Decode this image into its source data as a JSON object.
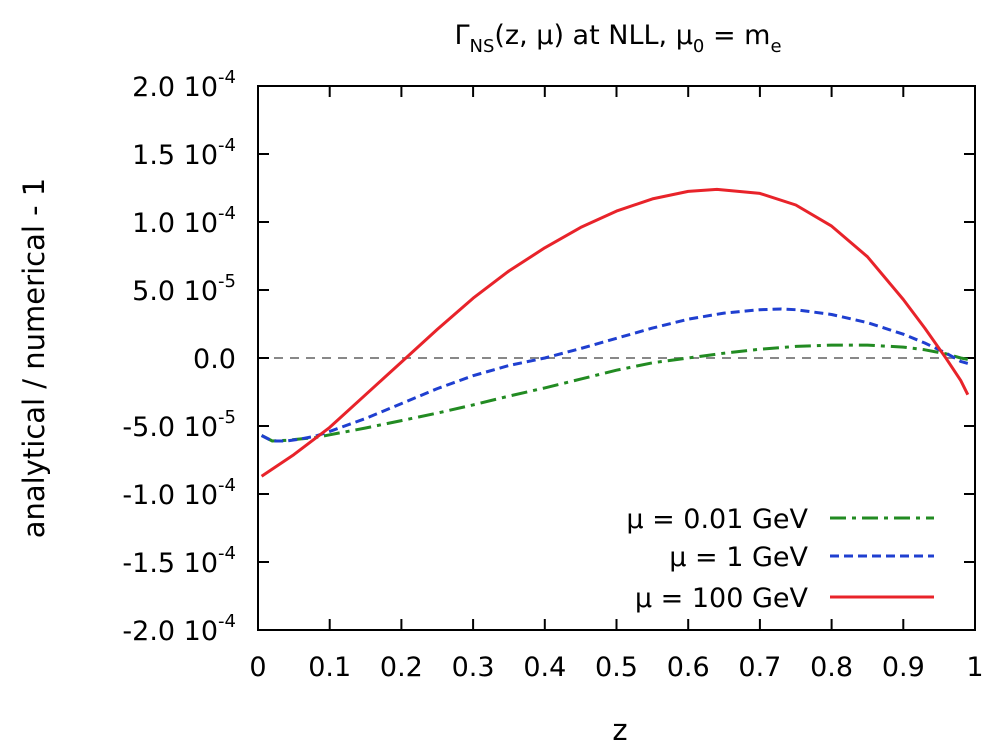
{
  "chart_data": {
    "type": "line",
    "title": {
      "prefix": "Γ",
      "prefix_sub": "NS",
      "middle": "(z, μ) at NLL, μ",
      "middle_sub": "0",
      "suffix": " = m",
      "suffix_sub": "e"
    },
    "xlabel": "z",
    "ylabel": "analytical / numerical - 1",
    "xlim": [
      0,
      1
    ],
    "ylim": [
      -0.0002,
      0.0002
    ],
    "xticks": [
      {
        "value": 0.0,
        "label": "0"
      },
      {
        "value": 0.1,
        "label": "0.1"
      },
      {
        "value": 0.2,
        "label": "0.2"
      },
      {
        "value": 0.3,
        "label": "0.3"
      },
      {
        "value": 0.4,
        "label": "0.4"
      },
      {
        "value": 0.5,
        "label": "0.5"
      },
      {
        "value": 0.6,
        "label": "0.6"
      },
      {
        "value": 0.7,
        "label": "0.7"
      },
      {
        "value": 0.8,
        "label": "0.8"
      },
      {
        "value": 0.9,
        "label": "0.9"
      },
      {
        "value": 1.0,
        "label": "1"
      }
    ],
    "yticks": [
      {
        "value": 0.0002,
        "mantissa": "2.0 10",
        "exp": "-4"
      },
      {
        "value": 0.00015,
        "mantissa": "1.5 10",
        "exp": "-4"
      },
      {
        "value": 0.0001,
        "mantissa": "1.0 10",
        "exp": "-4"
      },
      {
        "value": 5e-05,
        "mantissa": "5.0 10",
        "exp": "-5"
      },
      {
        "value": 0.0,
        "mantissa": "0.0",
        "exp": ""
      },
      {
        "value": -5e-05,
        "mantissa": "-5.0 10",
        "exp": "-5"
      },
      {
        "value": -0.0001,
        "mantissa": "-1.0 10",
        "exp": "-4"
      },
      {
        "value": -0.00015,
        "mantissa": "-1.5 10",
        "exp": "-4"
      },
      {
        "value": -0.0002,
        "mantissa": "-2.0 10",
        "exp": "-4"
      }
    ],
    "zero_line": true,
    "grid": false,
    "legend_position": "bottom-right",
    "series": [
      {
        "name": "μ = 0.01 GeV",
        "color": "#228b22",
        "dash": "dash-dot",
        "x": [
          0.005,
          0.02,
          0.04,
          0.06,
          0.08,
          0.1,
          0.15,
          0.2,
          0.25,
          0.3,
          0.35,
          0.4,
          0.45,
          0.5,
          0.55,
          0.6,
          0.65,
          0.7,
          0.75,
          0.8,
          0.85,
          0.9,
          0.93,
          0.96,
          0.98,
          0.99
        ],
        "y": [
          -5.7e-05,
          -6.1e-05,
          -6.05e-05,
          -5.95e-05,
          -5.85e-05,
          -5.65e-05,
          -5.15e-05,
          -4.6e-05,
          -4.05e-05,
          -3.45e-05,
          -2.8e-05,
          -2.2e-05,
          -1.55e-05,
          -9e-06,
          -3.5e-06,
          0.0,
          3.5e-06,
          6.5e-06,
          8.5e-06,
          9.5e-06,
          9.5e-06,
          8e-06,
          6e-06,
          3e-06,
          0.0,
          -1e-06
        ]
      },
      {
        "name": "μ = 1 GeV",
        "color": "#1f3fd0",
        "dash": "dashed",
        "x": [
          0.005,
          0.02,
          0.04,
          0.06,
          0.08,
          0.1,
          0.15,
          0.2,
          0.25,
          0.3,
          0.35,
          0.4,
          0.45,
          0.5,
          0.55,
          0.6,
          0.65,
          0.7,
          0.73,
          0.75,
          0.8,
          0.85,
          0.9,
          0.93,
          0.96,
          0.98,
          0.99
        ],
        "y": [
          -5.7e-05,
          -6.1e-05,
          -6.1e-05,
          -5.95e-05,
          -5.75e-05,
          -5.4e-05,
          -4.45e-05,
          -3.35e-05,
          -2.25e-05,
          -1.3e-05,
          -5.5e-06,
          0.0,
          7e-06,
          1.45e-05,
          2.2e-05,
          2.85e-05,
          3.3e-05,
          3.55e-05,
          3.6e-05,
          3.55e-05,
          3.2e-05,
          2.6e-05,
          1.75e-05,
          1.1e-05,
          3.5e-06,
          -2.5e-06,
          -4e-06
        ]
      },
      {
        "name": "μ = 100 GeV",
        "color": "#e8232a",
        "dash": "solid",
        "x": [
          0.005,
          0.05,
          0.1,
          0.15,
          0.2,
          0.25,
          0.3,
          0.35,
          0.4,
          0.45,
          0.5,
          0.55,
          0.6,
          0.64,
          0.7,
          0.75,
          0.8,
          0.85,
          0.9,
          0.93,
          0.96,
          0.98,
          0.99
        ],
        "y": [
          -8.7e-05,
          -7.1e-05,
          -5.1e-05,
          -2.7e-05,
          -3e-06,
          2.1e-05,
          4.4e-05,
          6.4e-05,
          8.1e-05,
          9.6e-05,
          0.000108,
          0.000117,
          0.0001225,
          0.000124,
          0.000121,
          0.0001125,
          9.7e-05,
          7.45e-05,
          4.3e-05,
          2.2e-05,
          -5e-07,
          -1.65e-05,
          -2.7e-05
        ]
      }
    ]
  }
}
